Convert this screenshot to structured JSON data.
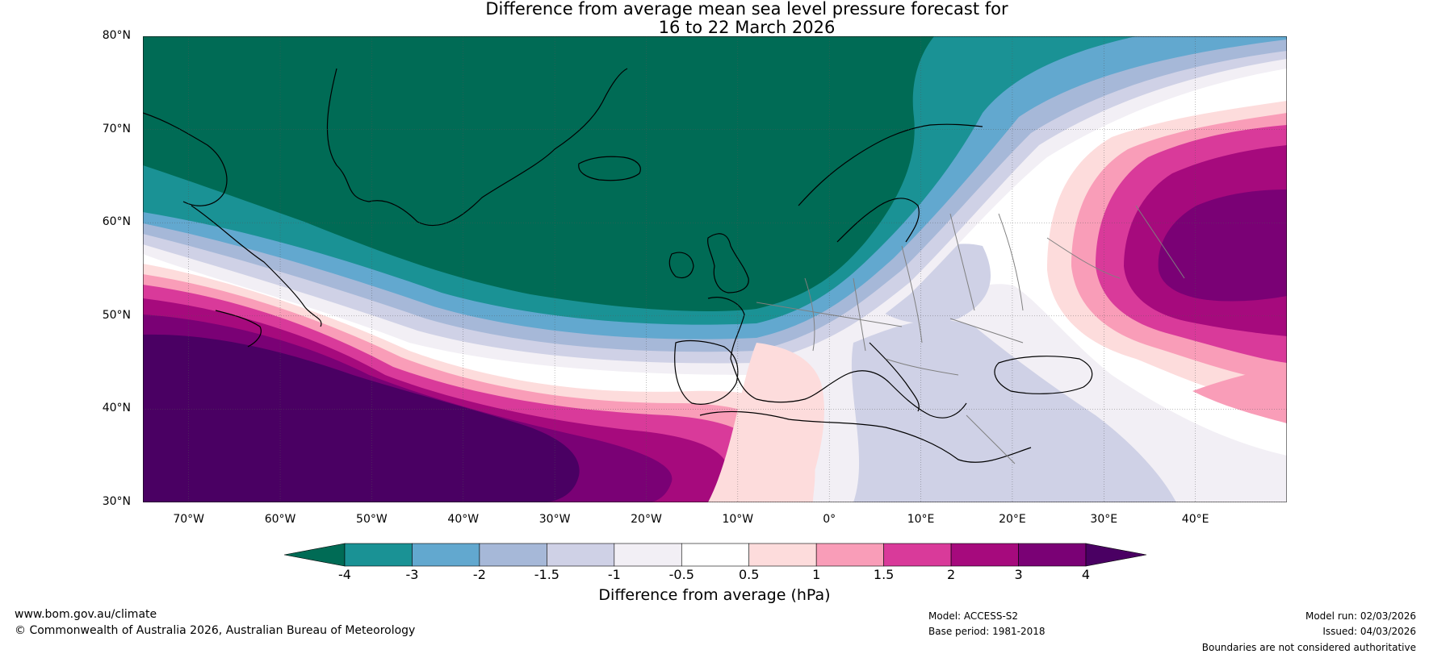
{
  "title": {
    "line1": "Difference from average mean sea level pressure forecast for",
    "line2": "16 to 22 March 2026"
  },
  "map": {
    "lat_labels": [
      "80°N",
      "70°N",
      "60°N",
      "50°N",
      "40°N",
      "30°N"
    ],
    "lon_labels": [
      "70°W",
      "60°W",
      "50°W",
      "40°W",
      "30°W",
      "20°W",
      "10°W",
      "0°",
      "10°E",
      "20°E",
      "30°E",
      "40°E"
    ],
    "lat_range": [
      30,
      80
    ],
    "lon_range": [
      -75,
      50
    ]
  },
  "colorbar": {
    "label": "Difference from average (hPa)",
    "ticks": [
      "-4",
      "-3",
      "-2",
      "-1.5",
      "-1",
      "-0.5",
      "0.5",
      "1",
      "1.5",
      "2",
      "3",
      "4"
    ],
    "colors": [
      "#006b55",
      "#1a9295",
      "#62a8cf",
      "#a6b8d8",
      "#cfd1e6",
      "#f2eff5",
      "#ffffff",
      "#fddcdc",
      "#f99db8",
      "#d93a9a",
      "#a60a7d",
      "#7a0175",
      "#4a0063"
    ]
  },
  "footer": {
    "website": "www.bom.gov.au/climate",
    "copyright": "© Commonwealth of Australia 2026, Australian Bureau of Meteorology",
    "model": "Model: ACCESS-S2",
    "base_period": "Base period: 1981-2018",
    "model_run": "Model run: 02/03/2026",
    "issued": "Issued: 04/03/2026",
    "disclaimer": "Boundaries are not considered authoritative"
  }
}
